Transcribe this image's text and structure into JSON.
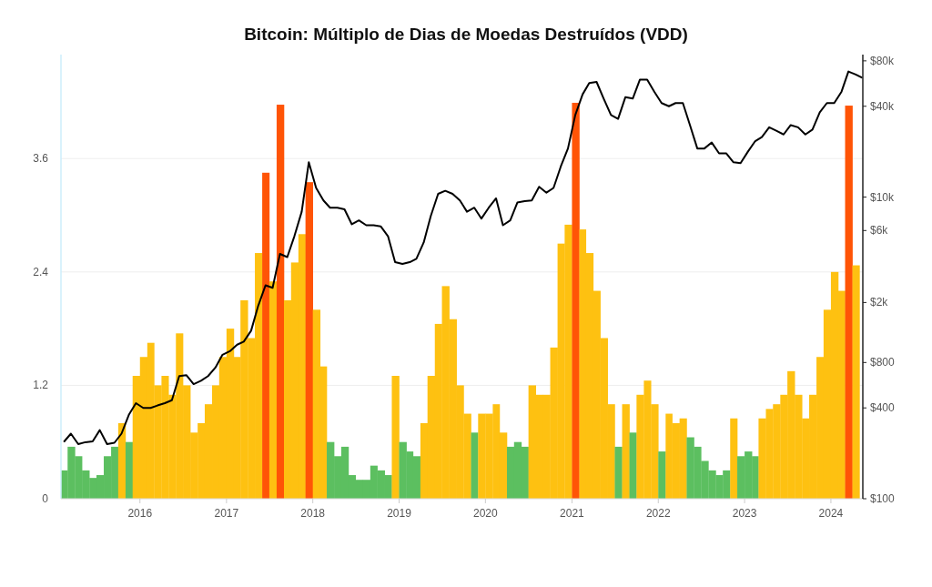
{
  "chart_data": {
    "type": "bar",
    "title": "Bitcoin: Múltiplo de Dias de Moedas Destruídos (VDD)",
    "xlim": [
      "2015-02-01",
      "2024-05-15"
    ],
    "xticks": [
      "2016",
      "2017",
      "2018",
      "2019",
      "2020",
      "2021",
      "2022",
      "2023",
      "2024"
    ],
    "ylim": [
      0,
      4.7
    ],
    "yticks": [
      0,
      1.2,
      2.4,
      3.6
    ],
    "y2lim": [
      100,
      88000
    ],
    "y2ticks": [
      {
        "value": 100,
        "label": "$100"
      },
      {
        "value": 400,
        "label": "$400"
      },
      {
        "value": 800,
        "label": "$800"
      },
      {
        "value": 2000,
        "label": "$2k"
      },
      {
        "value": 6000,
        "label": "$6k"
      },
      {
        "value": 10000,
        "label": "$10k"
      },
      {
        "value": 40000,
        "label": "$40k"
      },
      {
        "value": 80000,
        "label": "$80k"
      }
    ],
    "log": "y2",
    "grid": "y",
    "series": [
      {
        "x": [
          "2015-02",
          "2015-03",
          "2015-04",
          "2015-05",
          "2015-06",
          "2015-07",
          "2015-08",
          "2015-09",
          "2015-10",
          "2015-11",
          "2015-12",
          "2016-01",
          "2016-02",
          "2016-03",
          "2016-04",
          "2016-05",
          "2016-06",
          "2016-07",
          "2016-08",
          "2016-09",
          "2016-10",
          "2016-11",
          "2016-12",
          "2017-01",
          "2017-02",
          "2017-03",
          "2017-04",
          "2017-05",
          "2017-06",
          "2017-07",
          "2017-08",
          "2017-09",
          "2017-10",
          "2017-11",
          "2017-12",
          "2018-01",
          "2018-02",
          "2018-03",
          "2018-04",
          "2018-05",
          "2018-06",
          "2018-07",
          "2018-08",
          "2018-09",
          "2018-10",
          "2018-11",
          "2018-12",
          "2019-01",
          "2019-02",
          "2019-03",
          "2019-04",
          "2019-05",
          "2019-06",
          "2019-07",
          "2019-08",
          "2019-09",
          "2019-10",
          "2019-11",
          "2019-12",
          "2020-01",
          "2020-02",
          "2020-03",
          "2020-04",
          "2020-05",
          "2020-06",
          "2020-07",
          "2020-08",
          "2020-09",
          "2020-10",
          "2020-11",
          "2020-12",
          "2021-01",
          "2021-02",
          "2021-03",
          "2021-04",
          "2021-05",
          "2021-06",
          "2021-07",
          "2021-08",
          "2021-09",
          "2021-10",
          "2021-11",
          "2021-12",
          "2022-01",
          "2022-02",
          "2022-03",
          "2022-04",
          "2022-05",
          "2022-06",
          "2022-07",
          "2022-08",
          "2022-09",
          "2022-10",
          "2022-11",
          "2022-12",
          "2023-01",
          "2023-02",
          "2023-03",
          "2023-04",
          "2023-05",
          "2023-06",
          "2023-07",
          "2023-08",
          "2023-09",
          "2023-10",
          "2023-11",
          "2023-12",
          "2024-01",
          "2024-02",
          "2024-03",
          "2024-04"
        ],
        "values": [
          0.3,
          0.55,
          0.45,
          0.3,
          0.22,
          0.25,
          0.45,
          0.55,
          0.8,
          0.6,
          1.3,
          1.5,
          1.65,
          1.2,
          1.3,
          1.1,
          1.75,
          1.2,
          0.7,
          0.8,
          1.0,
          1.2,
          1.5,
          1.8,
          1.5,
          2.1,
          1.7,
          2.6,
          3.45,
          2.3,
          4.17,
          2.1,
          2.5,
          2.8,
          3.35,
          2.0,
          1.4,
          0.6,
          0.45,
          0.55,
          0.25,
          0.2,
          0.2,
          0.35,
          0.3,
          0.25,
          1.3,
          0.6,
          0.5,
          0.45,
          0.8,
          1.3,
          1.85,
          2.25,
          1.9,
          1.2,
          0.9,
          0.7,
          0.9,
          0.9,
          1.0,
          0.7,
          0.55,
          0.6,
          0.55,
          1.2,
          1.1,
          1.1,
          1.6,
          2.7,
          2.9,
          4.19,
          2.85,
          2.6,
          2.2,
          1.7,
          1.0,
          0.55,
          1.0,
          0.7,
          1.1,
          1.25,
          1.0,
          0.5,
          0.9,
          0.8,
          0.85,
          0.65,
          0.55,
          0.4,
          0.3,
          0.25,
          0.3,
          0.85,
          0.45,
          0.5,
          0.45,
          0.85,
          0.95,
          1.0,
          1.1,
          1.35,
          1.1,
          0.85,
          1.1,
          1.5,
          2.0,
          2.4,
          2.2,
          4.16,
          2.47
        ],
        "colors": [
          "#5cbf60",
          "#5cbf60",
          "#5cbf60",
          "#5cbf60",
          "#5cbf60",
          "#5cbf60",
          "#5cbf60",
          "#5cbf60",
          "#fec111",
          "#5cbf60",
          "#fec111",
          "#fec111",
          "#fec111",
          "#fec111",
          "#fec111",
          "#fec111",
          "#fec111",
          "#fec111",
          "#fec111",
          "#fec111",
          "#fec111",
          "#fec111",
          "#fec111",
          "#fec111",
          "#fec111",
          "#fec111",
          "#fec111",
          "#fec111",
          "#ff5406",
          "#fec111",
          "#ff5406",
          "#fec111",
          "#fec111",
          "#fec111",
          "#ff5406",
          "#fec111",
          "#fec111",
          "#5cbf60",
          "#5cbf60",
          "#5cbf60",
          "#5cbf60",
          "#5cbf60",
          "#5cbf60",
          "#5cbf60",
          "#5cbf60",
          "#5cbf60",
          "#fec111",
          "#5cbf60",
          "#5cbf60",
          "#5cbf60",
          "#fec111",
          "#fec111",
          "#fec111",
          "#fec111",
          "#fec111",
          "#fec111",
          "#fec111",
          "#5cbf60",
          "#fec111",
          "#fec111",
          "#fec111",
          "#fec111",
          "#5cbf60",
          "#5cbf60",
          "#5cbf60",
          "#fec111",
          "#fec111",
          "#fec111",
          "#fec111",
          "#fec111",
          "#fec111",
          "#ff5406",
          "#fec111",
          "#fec111",
          "#fec111",
          "#fec111",
          "#fec111",
          "#5cbf60",
          "#fec111",
          "#5cbf60",
          "#fec111",
          "#fec111",
          "#fec111",
          "#5cbf60",
          "#fec111",
          "#fec111",
          "#fec111",
          "#5cbf60",
          "#5cbf60",
          "#5cbf60",
          "#5cbf60",
          "#5cbf60",
          "#5cbf60",
          "#fec111",
          "#5cbf60",
          "#5cbf60",
          "#5cbf60",
          "#fec111",
          "#fec111",
          "#fec111",
          "#fec111",
          "#fec111",
          "#fec111",
          "#fec111",
          "#fec111",
          "#fec111",
          "#fec111",
          "#fec111",
          "#fec111",
          "#ff5406",
          "#fec111"
        ]
      },
      {
        "type": "line",
        "axis": "y2",
        "color": "#000000",
        "x": [
          "2015-02-15",
          "2015-03-15",
          "2015-04-15",
          "2015-05-15",
          "2015-06-15",
          "2015-07-15",
          "2015-08-15",
          "2015-09-15",
          "2015-10-15",
          "2015-11-15",
          "2015-12-15",
          "2016-01-15",
          "2016-02-15",
          "2016-03-15",
          "2016-04-15",
          "2016-05-15",
          "2016-06-15",
          "2016-07-15",
          "2016-08-15",
          "2016-09-15",
          "2016-10-15",
          "2016-11-15",
          "2016-12-15",
          "2017-01-15",
          "2017-02-15",
          "2017-03-15",
          "2017-04-15",
          "2017-05-15",
          "2017-06-15",
          "2017-07-15",
          "2017-08-15",
          "2017-09-15",
          "2017-10-15",
          "2017-11-15",
          "2017-12-15",
          "2018-01-15",
          "2018-02-15",
          "2018-03-15",
          "2018-04-15",
          "2018-05-15",
          "2018-06-15",
          "2018-07-15",
          "2018-08-15",
          "2018-09-15",
          "2018-10-15",
          "2018-11-15",
          "2018-12-15",
          "2019-01-15",
          "2019-02-15",
          "2019-03-15",
          "2019-04-15",
          "2019-05-15",
          "2019-06-15",
          "2019-07-15",
          "2019-08-15",
          "2019-09-15",
          "2019-10-15",
          "2019-11-15",
          "2019-12-15",
          "2020-01-15",
          "2020-02-15",
          "2020-03-15",
          "2020-04-15",
          "2020-05-15",
          "2020-06-15",
          "2020-07-15",
          "2020-08-15",
          "2020-09-15",
          "2020-10-15",
          "2020-11-15",
          "2020-12-15",
          "2021-01-15",
          "2021-02-15",
          "2021-03-15",
          "2021-04-15",
          "2021-05-15",
          "2021-06-15",
          "2021-07-15",
          "2021-08-15",
          "2021-09-15",
          "2021-10-15",
          "2021-11-15",
          "2021-12-15",
          "2022-01-15",
          "2022-02-15",
          "2022-03-15",
          "2022-04-15",
          "2022-05-15",
          "2022-06-15",
          "2022-07-15",
          "2022-08-15",
          "2022-09-15",
          "2022-10-15",
          "2022-11-15",
          "2022-12-15",
          "2023-01-15",
          "2023-02-15",
          "2023-03-15",
          "2023-04-15",
          "2023-05-15",
          "2023-06-15",
          "2023-07-15",
          "2023-08-15",
          "2023-09-15",
          "2023-10-15",
          "2023-11-15",
          "2023-12-15",
          "2024-01-15",
          "2024-02-15",
          "2024-03-15",
          "2024-04-15",
          "2024-05-10"
        ],
        "values": [
          240,
          270,
          230,
          237,
          240,
          285,
          230,
          235,
          270,
          360,
          430,
          400,
          400,
          415,
          430,
          450,
          650,
          660,
          575,
          605,
          650,
          740,
          900,
          950,
          1050,
          1100,
          1300,
          1900,
          2600,
          2500,
          4200,
          4000,
          5500,
          8000,
          17000,
          11500,
          9500,
          8500,
          8500,
          8300,
          6600,
          7000,
          6500,
          6500,
          6400,
          5500,
          3700,
          3600,
          3700,
          3900,
          5000,
          7500,
          10500,
          11000,
          10500,
          9500,
          8000,
          8500,
          7200,
          8500,
          9800,
          6500,
          7000,
          9200,
          9400,
          9500,
          11700,
          10700,
          11500,
          16000,
          21000,
          35000,
          48000,
          57000,
          58000,
          45000,
          35000,
          33000,
          46000,
          45000,
          60000,
          60000,
          50000,
          42000,
          40000,
          42000,
          42000,
          30000,
          21000,
          21000,
          23000,
          19500,
          19500,
          17000,
          16800,
          20000,
          23500,
          25000,
          29000,
          27500,
          26000,
          30000,
          29000,
          26000,
          28000,
          36500,
          42000,
          42000,
          50000,
          68000,
          65000,
          62000
        ]
      }
    ]
  }
}
